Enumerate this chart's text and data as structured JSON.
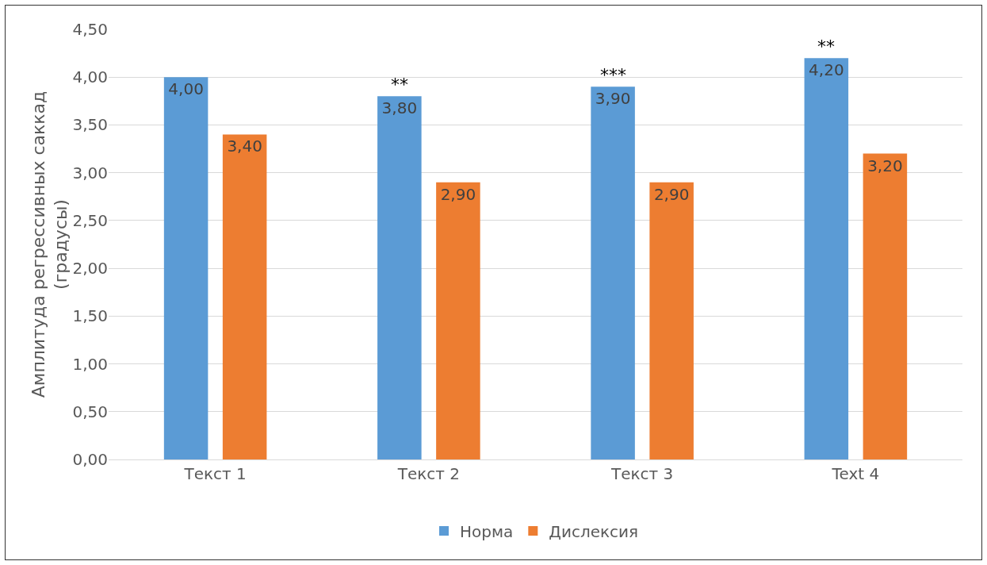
{
  "chart_data": {
    "type": "bar",
    "ylabel": "Амплитуда регрессивных саккад\n(градусы)",
    "categories": [
      "Текст 1",
      "Текст 2",
      "Текст 3",
      "Text 4"
    ],
    "series": [
      {
        "name": "Норма",
        "color": "#5b9bd5",
        "values": [
          4.0,
          3.8,
          3.9,
          4.2
        ],
        "value_labels": [
          "4,00",
          "3,80",
          "3,90",
          "4,20"
        ]
      },
      {
        "name": "Дислексия",
        "color": "#ed7d31",
        "values": [
          3.4,
          2.9,
          2.9,
          3.2
        ],
        "value_labels": [
          "3,40",
          "2,90",
          "2,90",
          "3,20"
        ]
      }
    ],
    "ylim": [
      0,
      4.5
    ],
    "yticks": [
      {
        "value": 0,
        "label": "0,00"
      },
      {
        "value": 0.5,
        "label": "0,50"
      },
      {
        "value": 1,
        "label": "1,00"
      },
      {
        "value": 1.5,
        "label": "1,50"
      },
      {
        "value": 2,
        "label": "2,00"
      },
      {
        "value": 2.5,
        "label": "2,50"
      },
      {
        "value": 3,
        "label": "3,00"
      },
      {
        "value": 3.5,
        "label": "3,50"
      },
      {
        "value": 4,
        "label": "4,00"
      },
      {
        "value": 4.5,
        "label": "4,50"
      }
    ],
    "grid": "y",
    "legend": "bottom",
    "annotations": [
      "**",
      "***",
      "**"
    ]
  }
}
